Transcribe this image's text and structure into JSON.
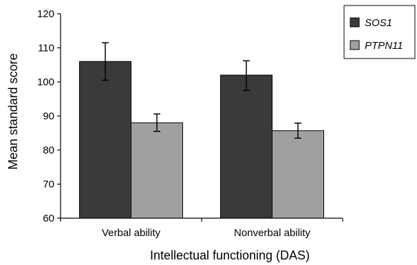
{
  "chart_data": {
    "type": "bar",
    "categories": [
      "Verbal ability",
      "Nonverbal ability"
    ],
    "series": [
      {
        "name": "SOS1",
        "values": [
          106,
          102
        ],
        "error_low": [
          100.5,
          97.5
        ],
        "error_high": [
          111.5,
          106.2
        ],
        "color": "#3a3a3a"
      },
      {
        "name": "PTPN11",
        "values": [
          88,
          85.7
        ],
        "error_low": [
          85.5,
          83.5
        ],
        "error_high": [
          90.6,
          87.9
        ],
        "color": "#a0a0a0"
      }
    ],
    "title": "",
    "xlabel": "Intellectual functioning (DAS)",
    "ylabel": "Mean standard score",
    "ylim": [
      60,
      120
    ],
    "yticks": [
      60,
      70,
      80,
      90,
      100,
      110,
      120
    ],
    "grid": false,
    "legend": "top-right",
    "error_bars": true
  }
}
